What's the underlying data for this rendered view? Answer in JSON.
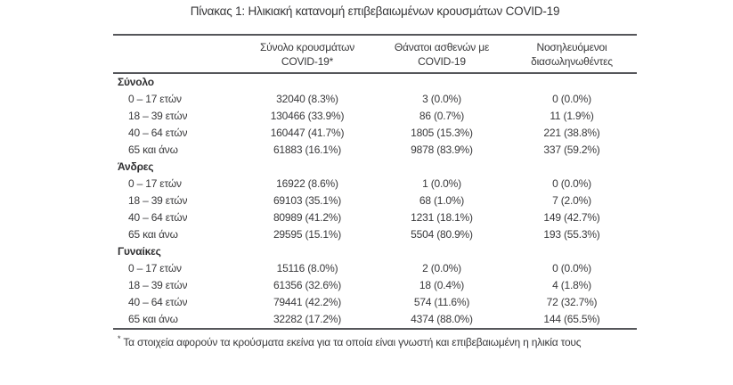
{
  "title": "Πίνακας 1: Ηλικιακή κατανομή επιβεβαιωμένων κρουσμάτων COVID-19",
  "table": {
    "columns": [
      {
        "line1": "Σύνολο κρουσμάτων",
        "line2": "COVID-19*"
      },
      {
        "line1": "Θάνατοι ασθενών με",
        "line2": "COVID-19"
      },
      {
        "line1": "Νοσηλευόμενοι",
        "line2": "διασωληνωθέντες"
      }
    ],
    "sections": [
      {
        "label": "Σύνολο",
        "rows": [
          {
            "age": "0 – 17 ετών",
            "cases": "32040 (8.3%)",
            "deaths": "3 (0.0%)",
            "intubated": "0 (0.0%)"
          },
          {
            "age": "18 – 39 ετών",
            "cases": "130466 (33.9%)",
            "deaths": "86 (0.7%)",
            "intubated": "11 (1.9%)"
          },
          {
            "age": "40 – 64 ετών",
            "cases": "160447 (41.7%)",
            "deaths": "1805 (15.3%)",
            "intubated": "221 (38.8%)"
          },
          {
            "age": "65 και άνω",
            "cases": "61883 (16.1%)",
            "deaths": "9878 (83.9%)",
            "intubated": "337 (59.2%)"
          }
        ]
      },
      {
        "label": "Άνδρες",
        "rows": [
          {
            "age": "0 – 17 ετών",
            "cases": "16922 (8.6%)",
            "deaths": "1 (0.0%)",
            "intubated": "0 (0.0%)"
          },
          {
            "age": "18 – 39 ετών",
            "cases": "69103 (35.1%)",
            "deaths": "68 (1.0%)",
            "intubated": "7 (2.0%)"
          },
          {
            "age": "40 – 64 ετών",
            "cases": "80989 (41.2%)",
            "deaths": "1231 (18.1%)",
            "intubated": "149 (42.7%)"
          },
          {
            "age": "65 και άνω",
            "cases": "29595 (15.1%)",
            "deaths": "5504 (80.9%)",
            "intubated": "193 (55.3%)"
          }
        ]
      },
      {
        "label": "Γυναίκες",
        "rows": [
          {
            "age": "0 – 17 ετών",
            "cases": "15116 (8.0%)",
            "deaths": "2 (0.0%)",
            "intubated": "0 (0.0%)"
          },
          {
            "age": "18 – 39 ετών",
            "cases": "61356 (32.6%)",
            "deaths": "18 (0.4%)",
            "intubated": "4 (1.8%)"
          },
          {
            "age": "40 – 64 ετών",
            "cases": "79441 (42.2%)",
            "deaths": "574 (11.6%)",
            "intubated": "72 (32.7%)"
          },
          {
            "age": "65 και άνω",
            "cases": "32282 (17.2%)",
            "deaths": "4374 (88.0%)",
            "intubated": "144 (65.5%)"
          }
        ]
      }
    ],
    "footnote_marker": "*",
    "footnote_text": "Τα στοιχεία αφορούν τα κρούσματα εκείνα για τα οποία είναι γνωστή και επιβεβαιωμένη η ηλικία τους"
  },
  "colors": {
    "text": "#39393b",
    "rule": "#55565a",
    "background": "#ffffff"
  }
}
